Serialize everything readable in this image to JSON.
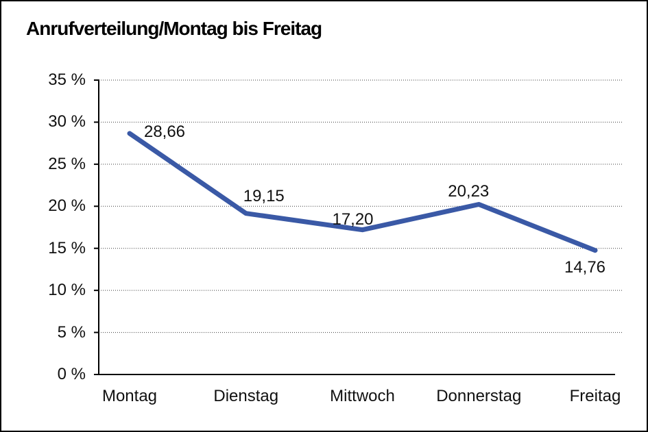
{
  "title": "Anrufverteilung/Montag bis Freitag",
  "window": {
    "background": "#ffffff",
    "border_color": "#000000"
  },
  "colors": {
    "series_line": "#3A59A6",
    "axis": "#000000",
    "gridline": "#3a3a3a",
    "text": "#111111"
  },
  "chart_data": {
    "type": "line",
    "title": "Anrufverteilung/Montag bis Freitag",
    "categories": [
      "Montag",
      "Dienstag",
      "Mittwoch",
      "Donnerstag",
      "Freitag"
    ],
    "series": [
      {
        "name": "Anrufverteilung",
        "values": [
          28.66,
          19.15,
          17.2,
          20.23,
          14.76
        ],
        "color": "#3A59A6"
      }
    ],
    "point_labels": [
      "28,66",
      "19,15",
      "17,20",
      "20,23",
      "14,76"
    ],
    "xlabel": "",
    "ylabel": "",
    "ylim": [
      0,
      35
    ],
    "ytick_step": 5,
    "ytick_labels": [
      "0 %",
      "5 %",
      "10 %",
      "15 %",
      "20 %",
      "25 %",
      "30 %",
      "35 %"
    ],
    "grid": "horizontal-dotted",
    "legend": "none",
    "markers": "none"
  }
}
